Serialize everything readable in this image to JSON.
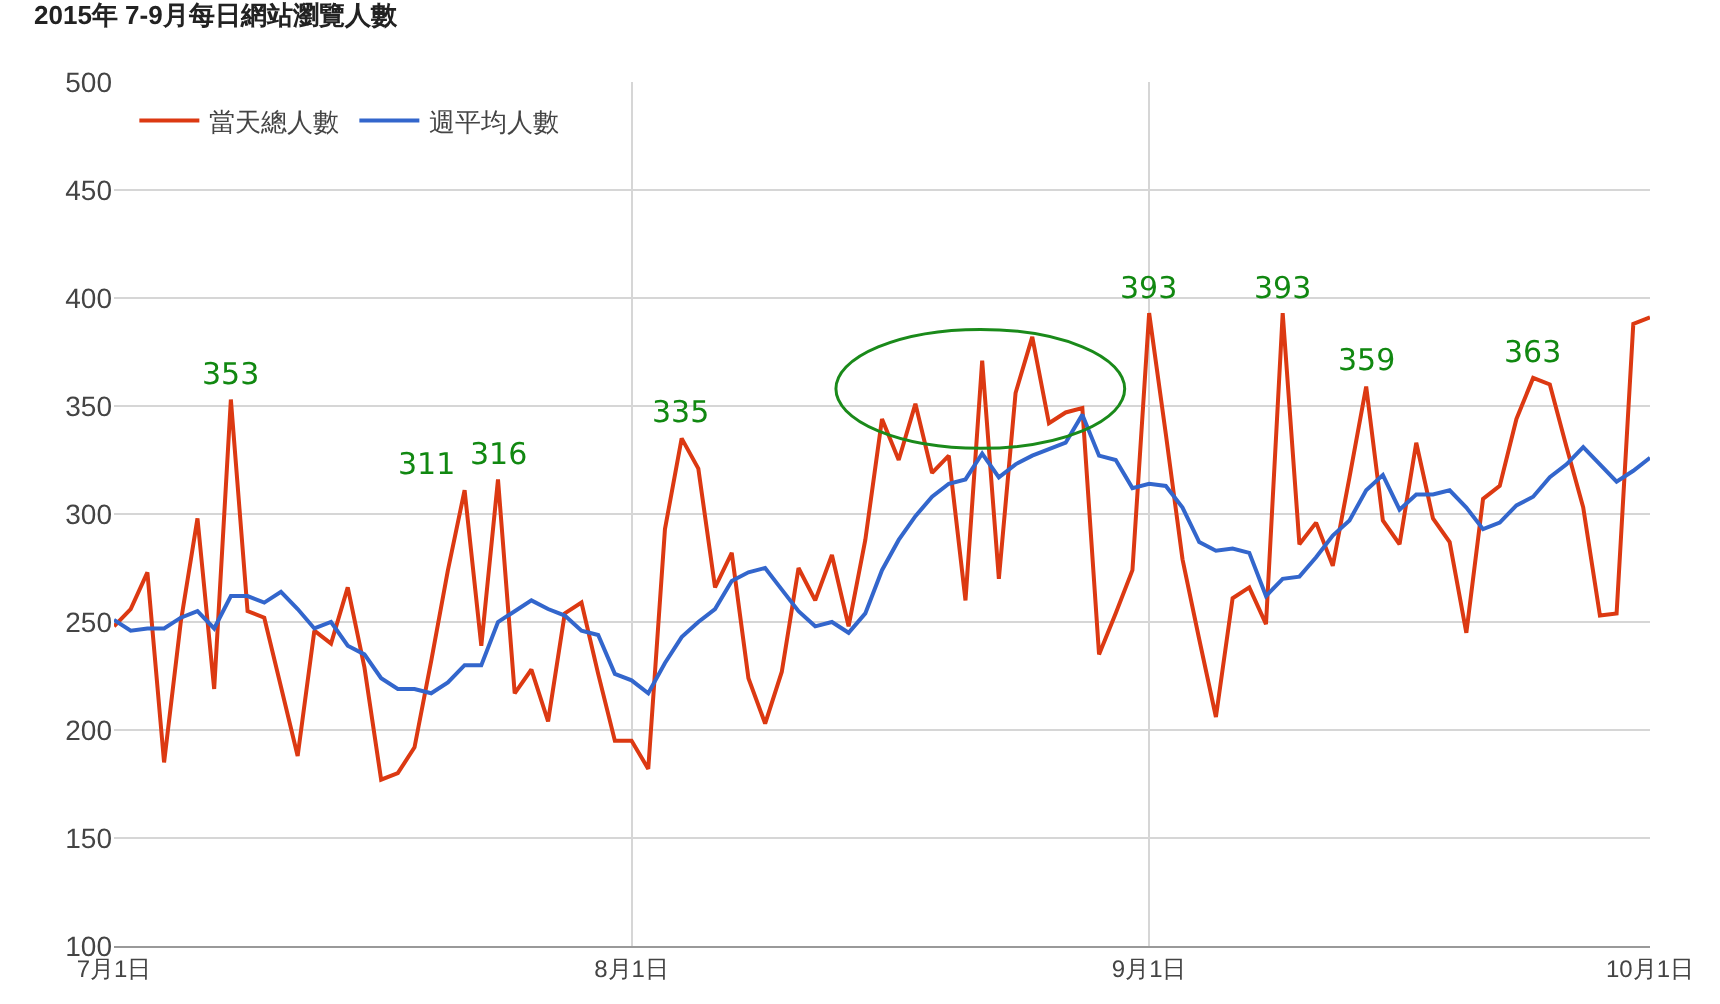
{
  "chart_data": {
    "type": "line",
    "title": "2015年 7-9月每日網站瀏覽人數",
    "x": [
      "2015-07-01",
      "2015-07-02",
      "2015-07-03",
      "2015-07-04",
      "2015-07-05",
      "2015-07-06",
      "2015-07-07",
      "2015-07-08",
      "2015-07-09",
      "2015-07-10",
      "2015-07-11",
      "2015-07-12",
      "2015-07-13",
      "2015-07-14",
      "2015-07-15",
      "2015-07-16",
      "2015-07-17",
      "2015-07-18",
      "2015-07-19",
      "2015-07-20",
      "2015-07-21",
      "2015-07-22",
      "2015-07-23",
      "2015-07-24",
      "2015-07-25",
      "2015-07-26",
      "2015-07-27",
      "2015-07-28",
      "2015-07-29",
      "2015-07-30",
      "2015-07-31",
      "2015-08-01",
      "2015-08-02",
      "2015-08-03",
      "2015-08-04",
      "2015-08-05",
      "2015-08-06",
      "2015-08-07",
      "2015-08-08",
      "2015-08-09",
      "2015-08-10",
      "2015-08-11",
      "2015-08-12",
      "2015-08-13",
      "2015-08-14",
      "2015-08-15",
      "2015-08-16",
      "2015-08-17",
      "2015-08-18",
      "2015-08-19",
      "2015-08-20",
      "2015-08-21",
      "2015-08-22",
      "2015-08-23",
      "2015-08-24",
      "2015-08-25",
      "2015-08-26",
      "2015-08-27",
      "2015-08-28",
      "2015-08-29",
      "2015-08-30",
      "2015-08-31",
      "2015-09-01",
      "2015-09-02",
      "2015-09-03",
      "2015-09-04",
      "2015-09-05",
      "2015-09-06",
      "2015-09-07",
      "2015-09-08",
      "2015-09-09",
      "2015-09-10",
      "2015-09-11",
      "2015-09-12",
      "2015-09-13",
      "2015-09-14",
      "2015-09-15",
      "2015-09-16",
      "2015-09-17",
      "2015-09-18",
      "2015-09-19",
      "2015-09-20",
      "2015-09-21",
      "2015-09-22",
      "2015-09-23",
      "2015-09-24",
      "2015-09-25",
      "2015-09-26",
      "2015-09-27",
      "2015-09-28",
      "2015-09-29",
      "2015-09-30",
      "2015-10-01"
    ],
    "series": [
      {
        "name": "當天總人數",
        "color": "#dc3912",
        "values": [
          248,
          256,
          273,
          185,
          250,
          298,
          219,
          353,
          255,
          252,
          220,
          188,
          246,
          240,
          266,
          229,
          177,
          180,
          192,
          232,
          274,
          311,
          239,
          316,
          217,
          228,
          204,
          254,
          259,
          226,
          195,
          195,
          182,
          293,
          335,
          321,
          266,
          282,
          224,
          203,
          227,
          275,
          260,
          281,
          248,
          288,
          344,
          325,
          351,
          319,
          327,
          260,
          371,
          270,
          356,
          382,
          342,
          347,
          349,
          235,
          254,
          274,
          393,
          337,
          279,
          242,
          206,
          261,
          266,
          249,
          393,
          286,
          296,
          276,
          317,
          359,
          297,
          286,
          333,
          298,
          287,
          245,
          307,
          313,
          344,
          363,
          360,
          331,
          303,
          253,
          254,
          388,
          391
        ]
      },
      {
        "name": "週平均人數",
        "color": "#3366cc",
        "values": [
          251,
          246,
          247,
          247,
          252,
          255,
          247,
          262,
          262,
          259,
          264,
          256,
          247,
          250,
          239,
          235,
          224,
          219,
          219,
          217,
          222,
          230,
          230,
          250,
          255,
          260,
          256,
          253,
          246,
          244,
          226,
          223,
          217,
          231,
          243,
          250,
          256,
          269,
          273,
          275,
          265,
          255,
          248,
          250,
          245,
          254,
          274,
          288,
          299,
          308,
          314,
          316,
          328,
          317,
          323,
          327,
          330,
          333,
          346,
          327,
          325,
          312,
          314,
          313,
          303,
          287,
          283,
          284,
          282,
          262,
          270,
          271,
          280,
          290,
          297,
          311,
          318,
          302,
          309,
          309,
          311,
          303,
          293,
          296,
          304,
          308,
          317,
          323,
          331,
          323,
          315,
          320,
          326
        ]
      }
    ],
    "annotations": [
      {
        "text": "353",
        "x": "2015-07-08",
        "y": 353
      },
      {
        "text": "311",
        "x": "2015-07-22",
        "y": 311
      },
      {
        "text": "316",
        "x": "2015-07-24",
        "y": 316
      },
      {
        "text": "335",
        "x": "2015-08-04",
        "y": 335
      },
      {
        "text": "393",
        "x": "2015-09-01",
        "y": 393
      },
      {
        "text": "393",
        "x": "2015-09-09",
        "y": 393
      },
      {
        "text": "359",
        "x": "2015-09-14",
        "y": 359
      },
      {
        "text": "363",
        "x": "2015-09-24",
        "y": 363
      }
    ],
    "xlim": [
      "2015-07-01",
      "2015-10-01"
    ],
    "xticks": [
      {
        "value": "2015-07-01",
        "label": "7月1日"
      },
      {
        "value": "2015-08-01",
        "label": "8月1日"
      },
      {
        "value": "2015-09-01",
        "label": "9月1日"
      },
      {
        "value": "2015-10-01",
        "label": "10月1日"
      }
    ],
    "ylim": [
      100,
      500
    ],
    "yticks": [
      100,
      150,
      200,
      250,
      300,
      350,
      400,
      450,
      500
    ],
    "grid": true,
    "legend": "top left",
    "marker": "none",
    "line_style": "solid"
  }
}
